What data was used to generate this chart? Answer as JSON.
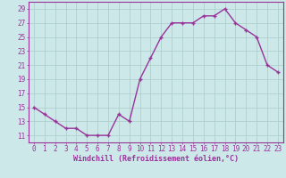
{
  "x": [
    0,
    1,
    2,
    3,
    4,
    5,
    6,
    7,
    8,
    9,
    10,
    11,
    12,
    13,
    14,
    15,
    16,
    17,
    18,
    19,
    20,
    21,
    22,
    23
  ],
  "y": [
    15,
    14,
    13,
    12,
    12,
    11,
    11,
    11,
    14,
    13,
    19,
    22,
    25,
    27,
    27,
    27,
    28,
    28,
    29,
    27,
    26,
    25,
    21,
    20
  ],
  "line_color": "#993399",
  "marker": "+",
  "marker_size": 3.5,
  "marker_lw": 1.0,
  "bg_color": "#cce8e8",
  "grid_color": "#aacccc",
  "xlabel": "Windchill (Refroidissement éolien,°C)",
  "xlabel_color": "#993399",
  "tick_color": "#993399",
  "ylim": [
    10,
    30
  ],
  "yticks": [
    11,
    13,
    15,
    17,
    19,
    21,
    23,
    25,
    27,
    29
  ],
  "xlim": [
    -0.5,
    23.5
  ],
  "xticks": [
    0,
    1,
    2,
    3,
    4,
    5,
    6,
    7,
    8,
    9,
    10,
    11,
    12,
    13,
    14,
    15,
    16,
    17,
    18,
    19,
    20,
    21,
    22,
    23
  ],
  "line_width": 1.0,
  "axis_color": "#993399",
  "tick_fontsize": 5.5,
  "xlabel_fontsize": 6.0
}
